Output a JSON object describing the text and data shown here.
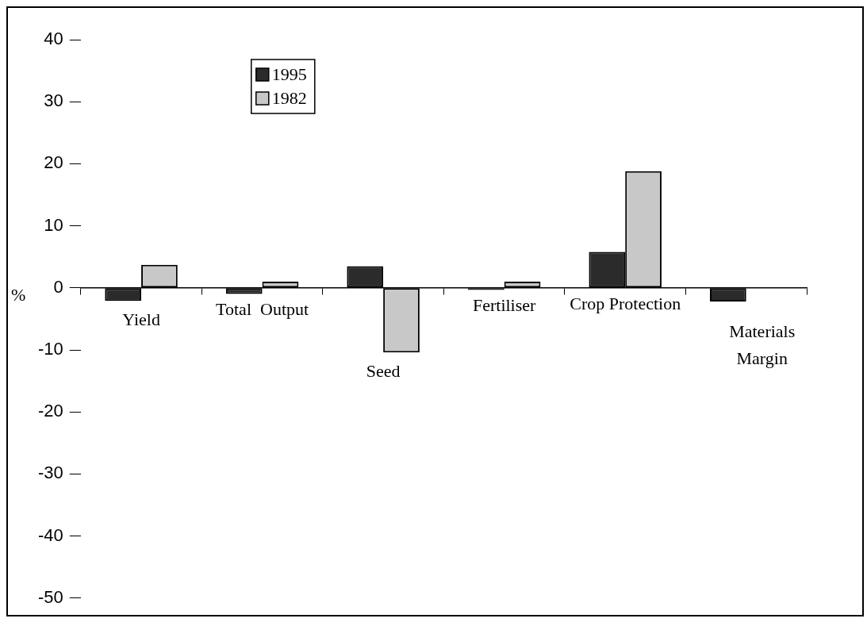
{
  "chart_data": {
    "type": "bar",
    "ylabel": "%",
    "categories": [
      "Yield",
      "Total  Output",
      "Seed",
      "Fertiliser",
      "Crop Protection",
      "Materials Margin"
    ],
    "series": [
      {
        "name": "1995",
        "color": "#2b2b2b",
        "values": [
          -2.1,
          -1.0,
          3.5,
          -0.3,
          5.8,
          -2.2
        ]
      },
      {
        "name": "1982",
        "color": "#c8c8c8",
        "values": [
          3.7,
          1.0,
          -10.4,
          1.0,
          18.8,
          null
        ]
      }
    ],
    "ylim": [
      -50,
      40
    ],
    "yticks": [
      -50,
      -40,
      -30,
      -20,
      -10,
      0,
      10,
      20,
      30,
      40
    ],
    "grid": false,
    "legend": "top left"
  }
}
